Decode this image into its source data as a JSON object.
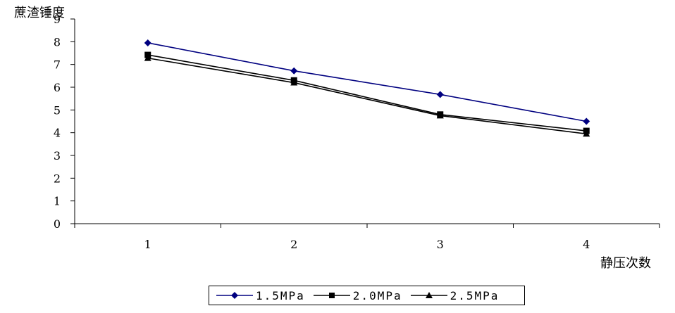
{
  "chart_data": {
    "type": "line",
    "ylabel": "蔗渣锤度",
    "xlabel": "静压次数",
    "categories": [
      "1",
      "2",
      "3",
      "4"
    ],
    "ylim": [
      0,
      9
    ],
    "yticks": [
      "0",
      "1",
      "2",
      "3",
      "4",
      "5",
      "6",
      "7",
      "8",
      "9"
    ],
    "grid": false,
    "legend_position": "bottom",
    "series": [
      {
        "name": "1.5MPa",
        "values": [
          7.95,
          6.72,
          5.68,
          4.5
        ],
        "color": "#000080",
        "marker": "diamond"
      },
      {
        "name": "2.0MPa",
        "values": [
          7.42,
          6.3,
          4.8,
          4.08
        ],
        "color": "#000000",
        "marker": "square"
      },
      {
        "name": "2.5MPa",
        "values": [
          7.28,
          6.2,
          4.75,
          3.95
        ],
        "color": "#000000",
        "marker": "triangle"
      }
    ]
  }
}
